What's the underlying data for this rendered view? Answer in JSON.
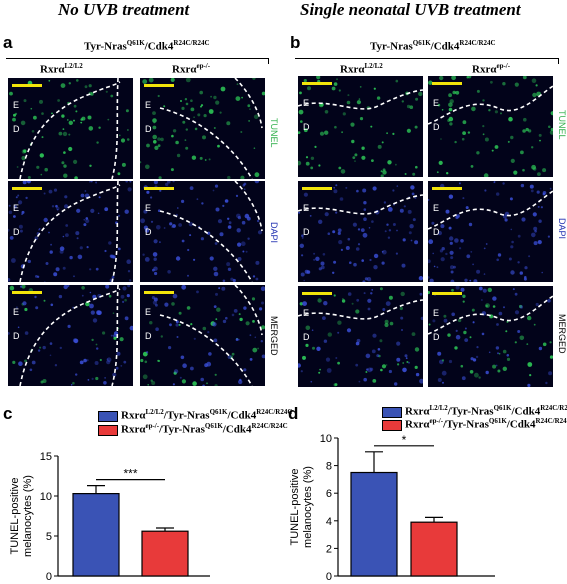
{
  "sections": {
    "left_title": "No UVB treatment",
    "right_title": "Single neonatal UVB treatment"
  },
  "panels": {
    "a": "a",
    "b": "b",
    "c": "c",
    "d": "d"
  },
  "genotype": {
    "base": "Tyr-Nras",
    "sup1": "Q61K",
    "mid": "/Cdk4",
    "sup2": "R24C/R24C"
  },
  "columns": {
    "control_base": "Rxrα",
    "control_sup": "L2/L2",
    "mutant_base": "Rxrα",
    "mutant_sup": "ep-/-"
  },
  "rows": [
    "TUNEL",
    "DAPI",
    "MERGED"
  ],
  "layer_labels": {
    "epidermis": "E",
    "dermis": "D"
  },
  "legend": {
    "series1": {
      "prefix": "Rxrα",
      "prefix_sup": "L2/L2",
      "mid": "/Tyr-Nras",
      "mid_sup": "Q61K",
      "end": "/Cdk4",
      "end_sup": "R24C/R24C"
    },
    "series2": {
      "prefix": "Rxrα",
      "prefix_sup": "ep-/-",
      "mid": "/Tyr-Nras",
      "mid_sup": "Q61K",
      "end": "/Cdk4",
      "end_sup": "R24C/R24C"
    }
  },
  "colors": {
    "bar_control": "#3a53b5",
    "bar_mutant": "#e83a3a",
    "scale_bar": "#f2e40a",
    "tunel_signal": "#2fd15a",
    "dapi_signal": "#3a4fd8"
  },
  "chart_data": [
    {
      "type": "bar",
      "panel": "c",
      "categories": [
        "Rxrα L2/L2",
        "Rxrα ep-/-"
      ],
      "values": [
        10.3,
        5.6
      ],
      "errors": [
        1.0,
        0.4
      ],
      "ylabel": "TUNEL-positive melanocytes (%)",
      "ylim": [
        0,
        15
      ],
      "yticks": [
        0,
        5,
        10,
        15
      ],
      "significance": "***"
    },
    {
      "type": "bar",
      "panel": "d",
      "categories": [
        "Rxrα L2/L2",
        "Rxrα ep-/-"
      ],
      "values": [
        7.5,
        3.9
      ],
      "errors": [
        1.5,
        0.35
      ],
      "ylabel": "TUNEL-positive melanocytes (%)",
      "ylim": [
        0,
        10
      ],
      "yticks": [
        0,
        2,
        4,
        6,
        8,
        10
      ],
      "significance": "*"
    }
  ]
}
